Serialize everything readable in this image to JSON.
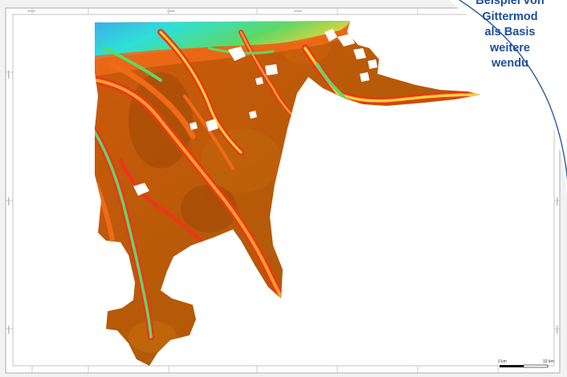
{
  "callout": {
    "lines": [
      "Beispiel von",
      "Gittermod",
      "als Basis",
      "weitere",
      "wendu"
    ],
    "text_color": "#1e4f9c",
    "border_color": "#2b5a9e"
  },
  "scalebar": {
    "left_label": "0 km",
    "right_label": "10 km"
  },
  "colors": {
    "land_brown": "#b55a08",
    "channel_red": "#e8381a",
    "channel_orange": "#f78a1c",
    "channel_yellow": "#f7d23a",
    "deep_green": "#5ed864",
    "deep_cyan": "#2ee0d6",
    "deep_blue": "#3ea0ef"
  },
  "legend_icon": "map-scalebar-icon"
}
